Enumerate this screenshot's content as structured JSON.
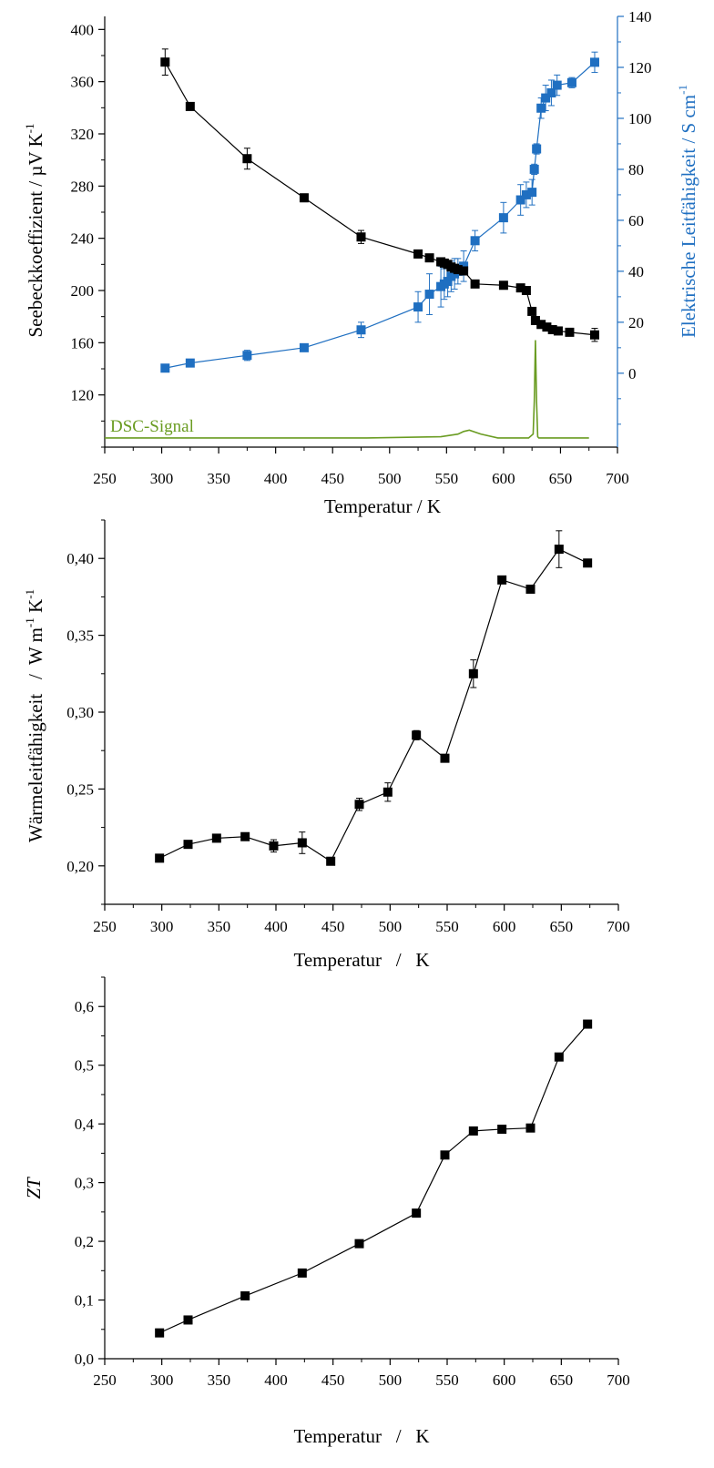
{
  "colors": {
    "black": "#000000",
    "blue": "#1f6fc1",
    "green": "#6a9c22"
  },
  "chart_data": [
    {
      "type": "line",
      "xlabel": "Temperatur / K",
      "ylabel": "Seebeckkoeffizient   /  µV K",
      "ylabel_sup": "-1",
      "y2label": "Elektrische Leitfähigkeit   /  S cm",
      "y2label_sup": "-1",
      "xlim": [
        250,
        700
      ],
      "ylim": [
        80,
        410
      ],
      "y2lim": [
        -29,
        140
      ],
      "xticks": [
        250,
        300,
        350,
        400,
        450,
        500,
        550,
        600,
        650,
        700
      ],
      "yticks": [
        120,
        160,
        200,
        240,
        280,
        320,
        360,
        400
      ],
      "y2ticks": [
        0,
        20,
        40,
        60,
        80,
        100,
        120,
        140
      ],
      "annotation": "DSC-Signal",
      "series": [
        {
          "axis": "left",
          "color": "#000000",
          "x": [
            303,
            325,
            375,
            425,
            475,
            525,
            535,
            545,
            548,
            551,
            554,
            557,
            560,
            565,
            575,
            600,
            615,
            620,
            625,
            628,
            633,
            638,
            643,
            648,
            658,
            680
          ],
          "y": [
            375,
            341,
            301,
            271,
            241,
            228,
            225,
            222,
            221,
            220,
            218,
            217,
            216,
            215,
            205,
            204,
            202,
            200,
            184,
            177,
            174,
            172,
            170,
            169,
            168,
            166
          ],
          "err": [
            10,
            2,
            8,
            3,
            5,
            3,
            2,
            3,
            2,
            2,
            2,
            2,
            2,
            2,
            2,
            2,
            2,
            2,
            2,
            2,
            2,
            2,
            2,
            2,
            2,
            5
          ]
        },
        {
          "axis": "right",
          "color": "#1f6fc1",
          "x": [
            303,
            325,
            375,
            425,
            475,
            525,
            535,
            545,
            548,
            551,
            554,
            557,
            560,
            565,
            575,
            600,
            615,
            620,
            625,
            627,
            629,
            633,
            637,
            642,
            647,
            660,
            680
          ],
          "y": [
            2,
            4,
            7,
            10,
            17,
            26,
            31,
            34,
            35,
            36,
            38,
            39,
            40,
            42,
            52,
            61,
            68,
            70,
            71,
            80,
            88,
            104,
            108,
            110,
            113,
            114,
            122
          ],
          "err": [
            1,
            1,
            2,
            1,
            3,
            6,
            8,
            8,
            6,
            6,
            6,
            6,
            5,
            6,
            4,
            6,
            6,
            5,
            5,
            2,
            2,
            4,
            5,
            5,
            4,
            2,
            4
          ]
        },
        {
          "type": "signal",
          "color": "#6a9c22",
          "x": [
            250,
            480,
            545,
            560,
            565,
            570,
            580,
            595,
            622,
            626,
            627,
            628,
            629,
            630,
            631,
            633,
            640,
            675
          ],
          "y": [
            87,
            87,
            88,
            90,
            92,
            93,
            90,
            87,
            87,
            90,
            115,
            162,
            115,
            88,
            87,
            87,
            87,
            87
          ]
        }
      ]
    },
    {
      "type": "line",
      "xlabel": "Temperatur   /   K",
      "ylabel": "Wärmeleitfähigkeit   /  W m",
      "ylabel_sup1": "-1",
      "ylabel_mid": " K",
      "ylabel_sup2": "-1",
      "xlim": [
        250,
        700
      ],
      "ylim": [
        0.175,
        0.425
      ],
      "xticks": [
        250,
        300,
        350,
        400,
        450,
        500,
        550,
        600,
        650,
        700
      ],
      "yticks": [
        "0,20",
        "0,25",
        "0,30",
        "0,35",
        "0,40"
      ],
      "ytick_values": [
        0.2,
        0.25,
        0.3,
        0.35,
        0.4
      ],
      "series": [
        {
          "color": "#000000",
          "x": [
            298,
            323,
            348,
            373,
            398,
            423,
            448,
            473,
            498,
            523,
            548,
            573,
            598,
            623,
            648,
            673
          ],
          "y": [
            0.205,
            0.214,
            0.218,
            0.219,
            0.213,
            0.215,
            0.203,
            0.24,
            0.248,
            0.285,
            0.27,
            0.325,
            0.386,
            0.38,
            0.406,
            0.397
          ],
          "err": [
            0.002,
            0.002,
            0.002,
            0.002,
            0.004,
            0.007,
            0.002,
            0.004,
            0.006,
            0.003,
            0.002,
            0.009,
            0.002,
            0.002,
            0.012,
            0.002
          ]
        }
      ]
    },
    {
      "type": "line",
      "xlabel": "Temperatur   /   K",
      "ylabel": "ZT",
      "xlim": [
        250,
        700
      ],
      "ylim": [
        0,
        0.65
      ],
      "xticks": [
        250,
        300,
        350,
        400,
        450,
        500,
        550,
        600,
        650,
        700
      ],
      "yticks": [
        "0,0",
        "0,1",
        "0,2",
        "0,3",
        "0,4",
        "0,5",
        "0,6"
      ],
      "ytick_values": [
        0,
        0.1,
        0.2,
        0.3,
        0.4,
        0.5,
        0.6
      ],
      "series": [
        {
          "color": "#000000",
          "x": [
            298,
            323,
            373,
            423,
            473,
            523,
            548,
            573,
            598,
            623,
            648,
            673
          ],
          "y": [
            0.044,
            0.066,
            0.107,
            0.146,
            0.196,
            0.248,
            0.347,
            0.388,
            0.391,
            0.393,
            0.514,
            0.57
          ]
        }
      ]
    }
  ]
}
